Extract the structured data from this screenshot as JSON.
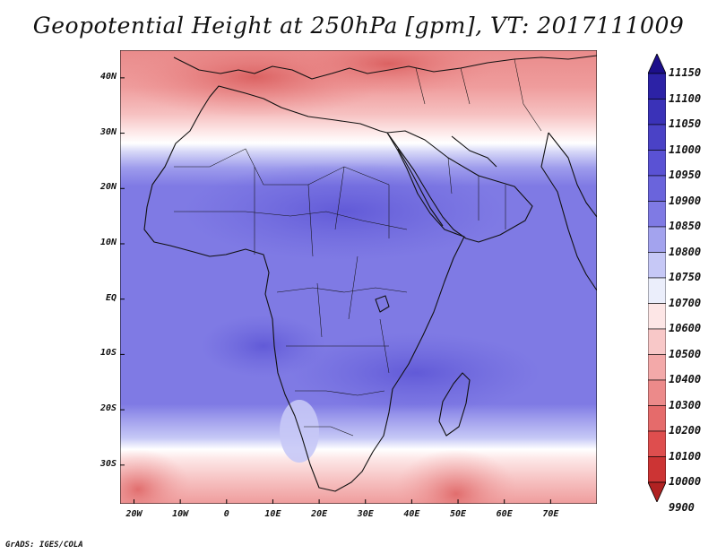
{
  "title": "Geopotential Height at 250hPa [gpm], VT: 2017111009",
  "footer": "GrADS: IGES/COLA",
  "map": {
    "region": "Africa",
    "lon_range": [
      -23,
      80
    ],
    "lat_range": [
      -37,
      45
    ],
    "lat_ticks": [
      {
        "value": 40,
        "label": "40N"
      },
      {
        "value": 30,
        "label": "30N"
      },
      {
        "value": 20,
        "label": "20N"
      },
      {
        "value": 10,
        "label": "10N"
      },
      {
        "value": 0,
        "label": "EQ"
      },
      {
        "value": -10,
        "label": "10S"
      },
      {
        "value": -20,
        "label": "20S"
      },
      {
        "value": -30,
        "label": "30S"
      }
    ],
    "lon_ticks": [
      {
        "value": -20,
        "label": "20W"
      },
      {
        "value": -10,
        "label": "10W"
      },
      {
        "value": 0,
        "label": "0"
      },
      {
        "value": 10,
        "label": "10E"
      },
      {
        "value": 20,
        "label": "20E"
      },
      {
        "value": 30,
        "label": "30E"
      },
      {
        "value": 40,
        "label": "40E"
      },
      {
        "value": 50,
        "label": "50E"
      },
      {
        "value": 60,
        "label": "60E"
      },
      {
        "value": 70,
        "label": "70E"
      }
    ]
  },
  "colorbar": {
    "levels": [
      "11150",
      "11100",
      "11050",
      "11000",
      "10950",
      "10900",
      "10850",
      "10800",
      "10750",
      "10700",
      "10600",
      "10500",
      "10400",
      "10300",
      "10200",
      "10100",
      "10000",
      "9900"
    ],
    "colors": [
      "#1c0f8a",
      "#2c22a6",
      "#3a32b8",
      "#4a42c6",
      "#5a52d4",
      "#6a64dc",
      "#7f7ae4",
      "#a3a3ee",
      "#c6c8f6",
      "#ebeefb",
      "#fde6e6",
      "#f8c8c8",
      "#f3a9a9",
      "#ec8a8a",
      "#e56b6b",
      "#de4e4e",
      "#cc3434",
      "#b02222"
    ]
  }
}
